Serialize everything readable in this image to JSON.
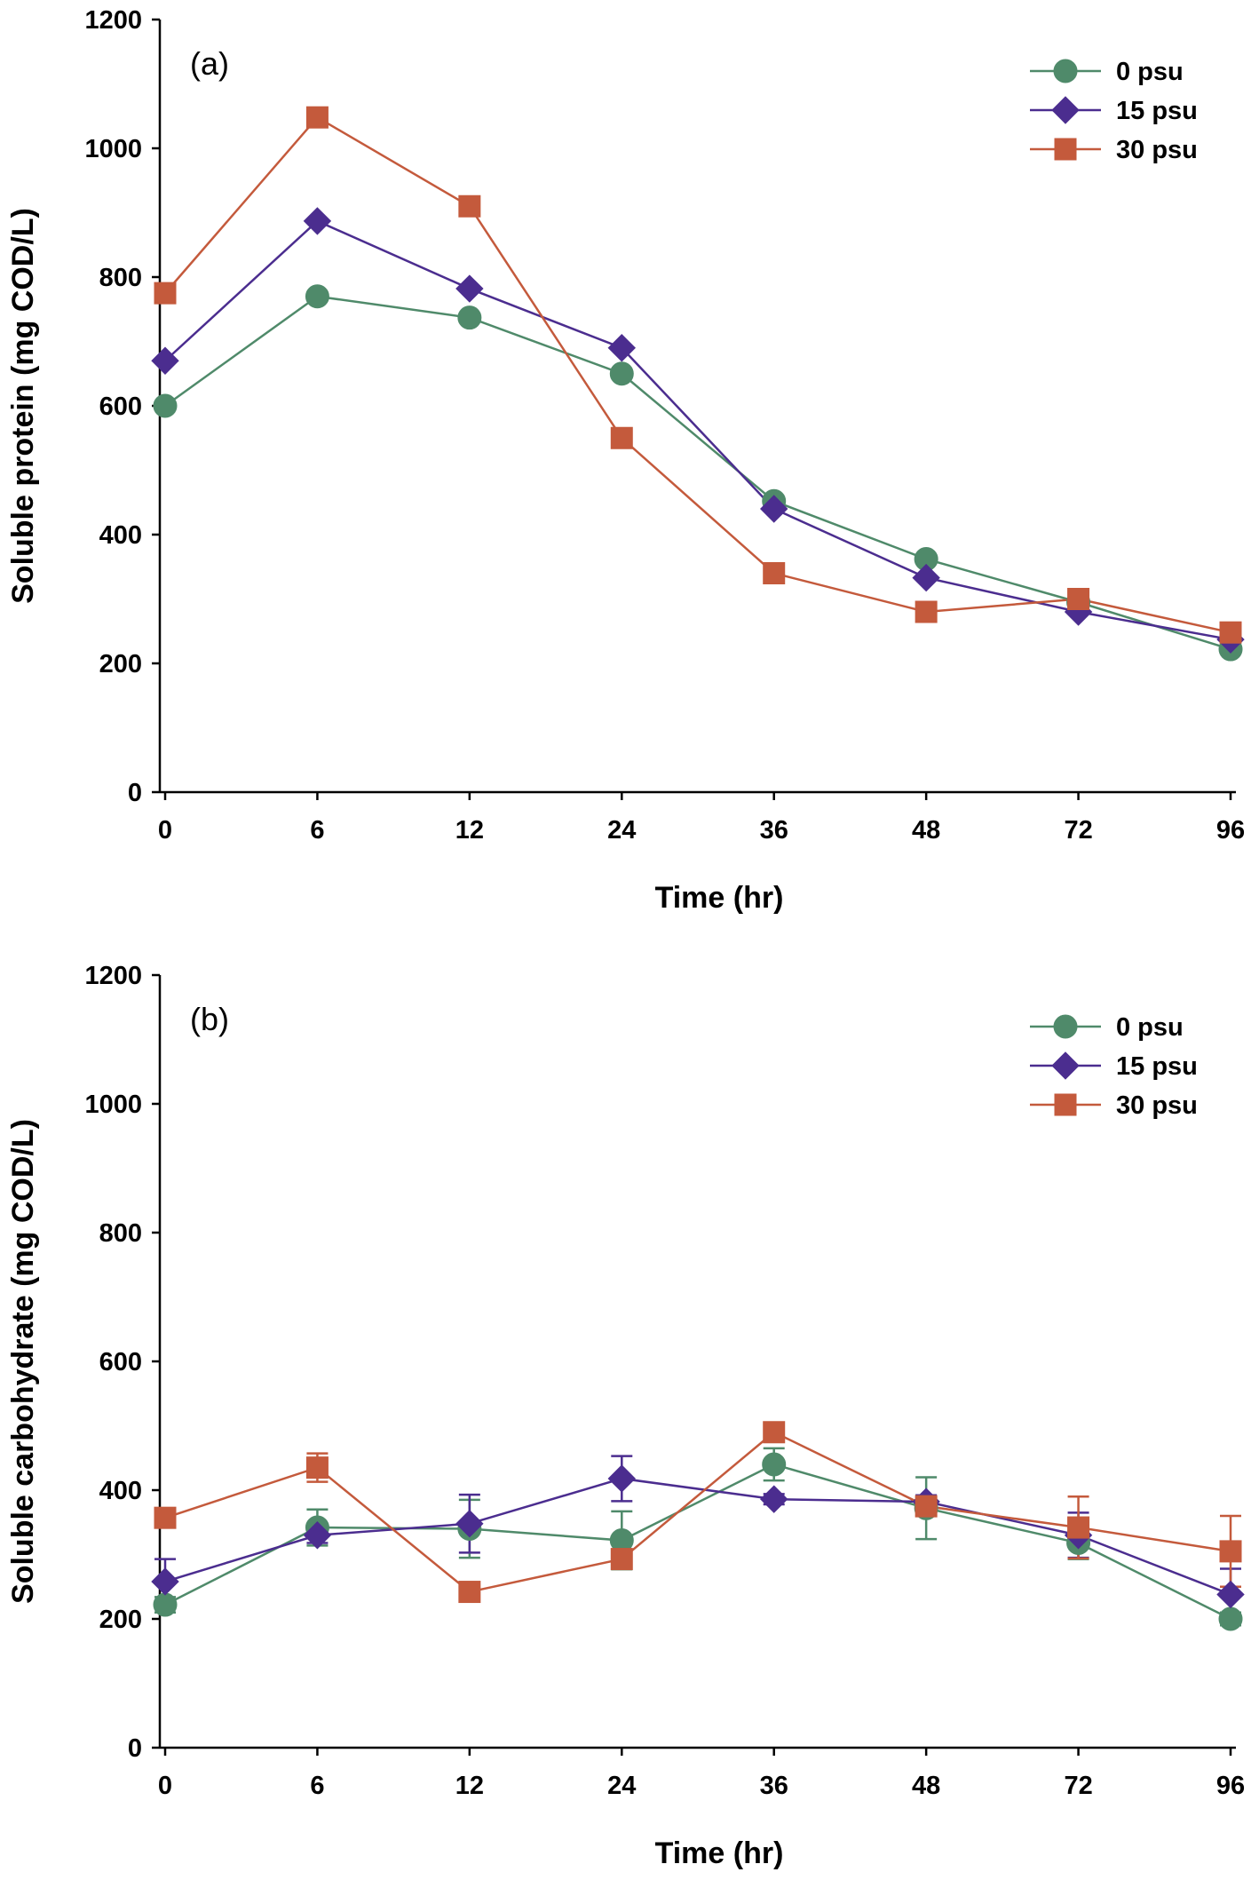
{
  "chart_data": [
    {
      "type": "line",
      "panel_label": "(a)",
      "title": "",
      "xlabel": "Time (hr)",
      "ylabel": "Soluble protein (mg COD/L)",
      "categories": [
        "0",
        "6",
        "12",
        "24",
        "36",
        "48",
        "72",
        "96"
      ],
      "ylim": [
        0,
        1200
      ],
      "yticks": [
        "0",
        "200",
        "400",
        "600",
        "800",
        "1000",
        "1200"
      ],
      "legend_position": "top-right",
      "series": [
        {
          "name": "0 psu",
          "marker": "circle",
          "color": "#4f8a6a",
          "values": [
            600,
            770,
            737,
            650,
            452,
            362,
            295,
            222
          ]
        },
        {
          "name": "15 psu",
          "marker": "diamond",
          "color": "#4b2d8f",
          "values": [
            670,
            887,
            782,
            690,
            440,
            333,
            280,
            237
          ]
        },
        {
          "name": "30 psu",
          "marker": "square",
          "color": "#c45a3c",
          "values": [
            775,
            1048,
            910,
            550,
            340,
            280,
            300,
            248
          ]
        }
      ]
    },
    {
      "type": "line",
      "panel_label": "(b)",
      "title": "",
      "xlabel": "Time (hr)",
      "ylabel": "Soluble carbohydrate (mg COD/L)",
      "categories": [
        "0",
        "6",
        "12",
        "24",
        "36",
        "48",
        "72",
        "96"
      ],
      "ylim": [
        0,
        1200
      ],
      "yticks": [
        "0",
        "200",
        "400",
        "600",
        "800",
        "1000",
        "1200"
      ],
      "legend_position": "top-right",
      "series": [
        {
          "name": "0 psu",
          "marker": "circle",
          "color": "#4f8a6a",
          "values": [
            222,
            342,
            340,
            322,
            440,
            372,
            318,
            200
          ],
          "errors": [
            12,
            28,
            45,
            45,
            25,
            48,
            25,
            10
          ]
        },
        {
          "name": "15 psu",
          "marker": "diamond",
          "color": "#4b2d8f",
          "values": [
            258,
            330,
            348,
            418,
            386,
            382,
            330,
            238
          ],
          "errors": [
            35,
            12,
            45,
            35,
            8,
            10,
            35,
            40
          ]
        },
        {
          "name": "30 psu",
          "marker": "square",
          "color": "#c45a3c",
          "values": [
            357,
            435,
            242,
            293,
            490,
            375,
            342,
            305
          ],
          "errors": [
            10,
            22,
            10,
            10,
            12,
            10,
            48,
            55
          ]
        }
      ]
    }
  ]
}
